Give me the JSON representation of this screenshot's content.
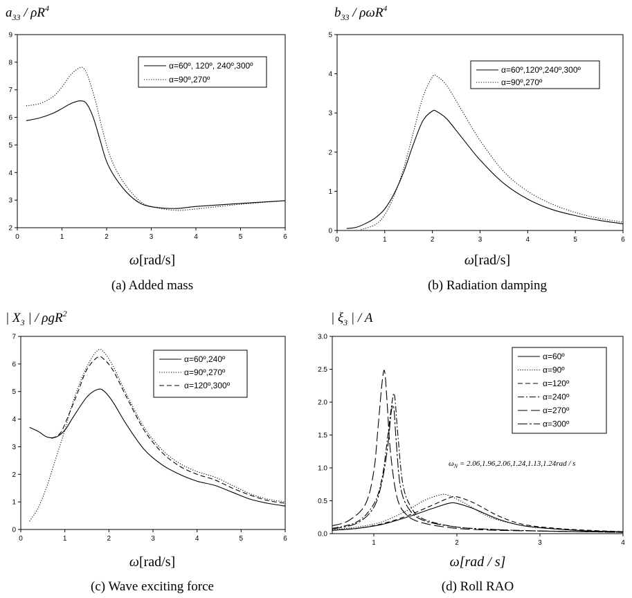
{
  "chart_data": [
    {
      "type": "line",
      "ylabel": "a33 / ρR^4",
      "xlabel": "ω[rad/s]",
      "caption": "(a) Added mass",
      "xlim": [
        0,
        6
      ],
      "ylim": [
        2,
        9
      ],
      "xticks": [
        "0",
        "1",
        "2",
        "3",
        "4",
        "5",
        "6"
      ],
      "yticks": [
        "2",
        "3",
        "4",
        "5",
        "6",
        "7",
        "8",
        "9"
      ],
      "legend_position": "top-right",
      "series": [
        {
          "name": "α=60º, 120º, 240º,300º",
          "dash": "solid",
          "x": [
            0.2,
            0.5,
            0.8,
            1.0,
            1.2,
            1.4,
            1.55,
            1.7,
            1.85,
            2.0,
            2.2,
            2.5,
            2.8,
            3.2,
            3.6,
            4.0,
            5.0,
            6.0
          ],
          "y": [
            5.88,
            5.98,
            6.15,
            6.32,
            6.5,
            6.6,
            6.5,
            6.0,
            5.2,
            4.4,
            3.8,
            3.2,
            2.85,
            2.72,
            2.7,
            2.77,
            2.88,
            2.98
          ]
        },
        {
          "name": "α=90º,270º",
          "dash": "dotted",
          "x": [
            0.2,
            0.5,
            0.8,
            1.0,
            1.2,
            1.4,
            1.5,
            1.6,
            1.75,
            1.9,
            2.1,
            2.4,
            2.8,
            3.2,
            3.6,
            4.0,
            5.0,
            6.0
          ],
          "y": [
            6.42,
            6.5,
            6.75,
            7.1,
            7.55,
            7.8,
            7.75,
            7.4,
            6.6,
            5.6,
            4.5,
            3.6,
            2.9,
            2.7,
            2.63,
            2.68,
            2.85,
            2.98
          ]
        }
      ]
    },
    {
      "type": "line",
      "ylabel": "b33 / ρωR^4",
      "xlabel": "ω[rad/s]",
      "caption": "(b) Radiation damping",
      "xlim": [
        0,
        6
      ],
      "ylim": [
        0,
        5
      ],
      "xticks": [
        "0",
        "1",
        "2",
        "3",
        "4",
        "5",
        "6"
      ],
      "yticks": [
        "0",
        "1",
        "2",
        "3",
        "4",
        "5"
      ],
      "legend_position": "top-right",
      "series": [
        {
          "name": "α=60º,120º,240º,300º",
          "dash": "solid",
          "x": [
            0.2,
            0.4,
            0.6,
            0.8,
            1.0,
            1.2,
            1.4,
            1.6,
            1.8,
            2.0,
            2.1,
            2.3,
            2.6,
            3.0,
            3.5,
            4.0,
            4.5,
            5.0,
            5.5,
            6.0
          ],
          "y": [
            0.05,
            0.08,
            0.18,
            0.32,
            0.55,
            0.95,
            1.5,
            2.2,
            2.8,
            3.05,
            3.03,
            2.85,
            2.4,
            1.8,
            1.2,
            0.8,
            0.54,
            0.38,
            0.26,
            0.17
          ]
        },
        {
          "name": "α=90º,270º",
          "dash": "dotted",
          "x": [
            0.5,
            0.8,
            1.0,
            1.2,
            1.4,
            1.6,
            1.8,
            2.0,
            2.1,
            2.3,
            2.6,
            3.0,
            3.5,
            4.0,
            4.5,
            5.0,
            5.5,
            6.0
          ],
          "y": [
            0.02,
            0.15,
            0.4,
            0.9,
            1.6,
            2.5,
            3.4,
            3.92,
            3.93,
            3.7,
            3.1,
            2.3,
            1.5,
            1.0,
            0.68,
            0.46,
            0.31,
            0.21
          ]
        }
      ]
    },
    {
      "type": "line",
      "ylabel": "| X3 | / ρgR^2",
      "xlabel": "ω[rad/s]",
      "caption": "(c) Wave exciting force",
      "xlim": [
        0,
        6
      ],
      "ylim": [
        0,
        7
      ],
      "xticks": [
        "0",
        "1",
        "2",
        "3",
        "4",
        "5",
        "6"
      ],
      "yticks": [
        "0",
        "1",
        "2",
        "3",
        "4",
        "5",
        "6",
        "7"
      ],
      "legend_position": "top-right",
      "series": [
        {
          "name": "α=60º,240º",
          "dash": "solid",
          "x": [
            0.2,
            0.4,
            0.6,
            0.8,
            1.0,
            1.2,
            1.5,
            1.75,
            1.9,
            2.1,
            2.4,
            2.8,
            3.2,
            3.6,
            4.0,
            4.4,
            4.8,
            5.2,
            5.6,
            6.0
          ],
          "y": [
            3.7,
            3.55,
            3.35,
            3.35,
            3.6,
            4.1,
            4.8,
            5.08,
            5.0,
            4.6,
            3.8,
            2.9,
            2.35,
            2.0,
            1.75,
            1.6,
            1.35,
            1.1,
            0.95,
            0.85
          ]
        },
        {
          "name": "α=90º,270º",
          "dash": "dotted",
          "x": [
            0.2,
            0.4,
            0.6,
            0.8,
            1.0,
            1.2,
            1.5,
            1.75,
            1.9,
            2.1,
            2.4,
            2.8,
            3.2,
            3.6,
            4.0,
            4.4,
            4.8,
            5.2,
            5.6,
            6.0
          ],
          "y": [
            0.3,
            0.8,
            1.6,
            2.6,
            3.6,
            4.7,
            5.9,
            6.5,
            6.4,
            5.9,
            4.9,
            3.7,
            2.9,
            2.4,
            2.1,
            1.9,
            1.6,
            1.3,
            1.1,
            1.0
          ]
        },
        {
          "name": "α=120º,300º",
          "dash": "dashed",
          "x": [
            0.7,
            0.9,
            1.1,
            1.3,
            1.5,
            1.75,
            1.9,
            2.1,
            2.4,
            2.8,
            3.2,
            3.6,
            4.0,
            4.4,
            4.8,
            5.2,
            5.6,
            6.0
          ],
          "y": [
            3.3,
            3.5,
            4.2,
            5.0,
            5.8,
            6.25,
            6.15,
            5.75,
            4.8,
            3.6,
            2.8,
            2.3,
            2.0,
            1.8,
            1.5,
            1.25,
            1.05,
            0.95
          ]
        }
      ]
    },
    {
      "type": "line",
      "ylabel": "| ξ3 | / A",
      "xlabel": "ω[rad / s]",
      "caption": "(d) Roll RAO",
      "xlim": [
        0.5,
        4
      ],
      "ylim": [
        0,
        3
      ],
      "xticks": [
        "1",
        "2",
        "3",
        "4"
      ],
      "yticks": [
        "0.0",
        "0.5",
        "1.0",
        "1.5",
        "2.0",
        "2.5",
        "3.0"
      ],
      "legend_position": "top-right",
      "annotation": "ωN = 2.06,1.96,2.06,1.24,1.13,1.24rad / s",
      "series": [
        {
          "name": "α=60º",
          "dash": "solid",
          "x": [
            0.5,
            0.8,
            1.1,
            1.4,
            1.7,
            1.9,
            2.0,
            2.2,
            2.5,
            2.8,
            3.2,
            3.6,
            4.0
          ],
          "y": [
            0.05,
            0.08,
            0.14,
            0.25,
            0.38,
            0.46,
            0.46,
            0.38,
            0.22,
            0.12,
            0.07,
            0.04,
            0.03
          ]
        },
        {
          "name": "α=90º",
          "dash": "dotted",
          "x": [
            0.5,
            0.8,
            1.1,
            1.4,
            1.6,
            1.8,
            1.9,
            2.1,
            2.4,
            2.8,
            3.2,
            3.6,
            4.0
          ],
          "y": [
            0.06,
            0.1,
            0.18,
            0.35,
            0.5,
            0.59,
            0.58,
            0.46,
            0.25,
            0.12,
            0.07,
            0.04,
            0.03
          ]
        },
        {
          "name": "α=120º",
          "dash": "dashed",
          "x": [
            0.5,
            0.8,
            1.1,
            1.4,
            1.7,
            1.9,
            2.0,
            2.2,
            2.5,
            2.8,
            3.2,
            3.6,
            4.0
          ],
          "y": [
            0.05,
            0.08,
            0.15,
            0.27,
            0.43,
            0.54,
            0.56,
            0.47,
            0.27,
            0.14,
            0.08,
            0.05,
            0.03
          ]
        },
        {
          "name": "α=240º",
          "dash": "dashdot",
          "x": [
            0.5,
            0.8,
            1.0,
            1.1,
            1.17,
            1.22,
            1.25,
            1.29,
            1.35,
            1.45,
            1.6,
            2.0,
            2.5,
            3.0,
            3.5,
            4.0
          ],
          "y": [
            0.08,
            0.18,
            0.45,
            0.85,
            1.5,
            2.0,
            2.1,
            1.5,
            0.75,
            0.4,
            0.22,
            0.1,
            0.06,
            0.04,
            0.03,
            0.02
          ]
        },
        {
          "name": "α=270º",
          "dash": "longdash",
          "x": [
            0.5,
            0.7,
            0.9,
            1.0,
            1.05,
            1.1,
            1.13,
            1.16,
            1.2,
            1.28,
            1.4,
            1.6,
            2.0,
            2.5,
            3.0,
            3.5,
            4.0
          ],
          "y": [
            0.12,
            0.2,
            0.45,
            0.95,
            1.6,
            2.3,
            2.47,
            2.0,
            1.25,
            0.55,
            0.28,
            0.16,
            0.08,
            0.05,
            0.04,
            0.03,
            0.02
          ]
        },
        {
          "name": "α=300º",
          "dash": "dashdotlong",
          "x": [
            0.5,
            0.8,
            1.0,
            1.1,
            1.17,
            1.21,
            1.24,
            1.27,
            1.32,
            1.42,
            1.6,
            2.0,
            2.5,
            3.0,
            3.5,
            4.0
          ],
          "y": [
            0.07,
            0.16,
            0.4,
            0.8,
            1.35,
            1.85,
            1.92,
            1.4,
            0.72,
            0.38,
            0.2,
            0.1,
            0.06,
            0.04,
            0.03,
            0.02
          ]
        }
      ]
    }
  ]
}
